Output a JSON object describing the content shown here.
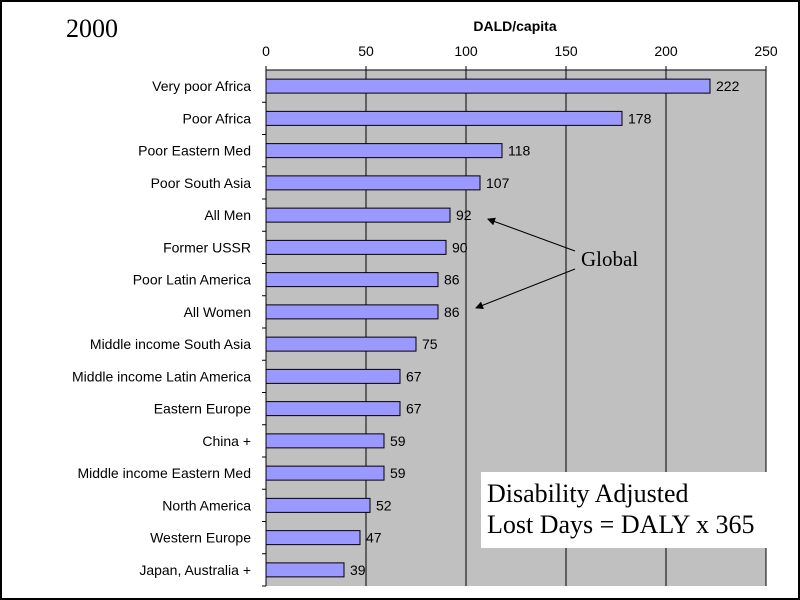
{
  "year_label": "2000",
  "note_box": {
    "line1": "Disability Adjusted",
    "line2": "Lost Days = DALY x 365"
  },
  "colors": {
    "plot_bg": "#c0c0c0",
    "bar_fill": "#9999ff",
    "bar_stroke": "#000000"
  },
  "chart_data": {
    "type": "bar",
    "orientation": "horizontal",
    "title": "DALD/capita",
    "axis_position": "top",
    "xlim": [
      0,
      250
    ],
    "ticks": [
      0,
      50,
      100,
      150,
      200,
      250
    ],
    "grid": true,
    "categories": [
      "Very poor Africa",
      "Poor Africa",
      "Poor Eastern Med",
      "Poor South Asia",
      "All Men",
      "Former USSR",
      "Poor Latin America",
      "All Women",
      "Middle income South Asia",
      "Middle income Latin America",
      "Eastern Europe",
      "China +",
      "Middle income Eastern Med",
      "North America",
      "Western Europe",
      "Japan, Australia +"
    ],
    "values": [
      222,
      178,
      118,
      107,
      92,
      90,
      86,
      86,
      75,
      67,
      67,
      59,
      59,
      52,
      47,
      39
    ],
    "annotation": {
      "text": "Global",
      "points_to": [
        "All Men",
        "All Women"
      ]
    }
  }
}
